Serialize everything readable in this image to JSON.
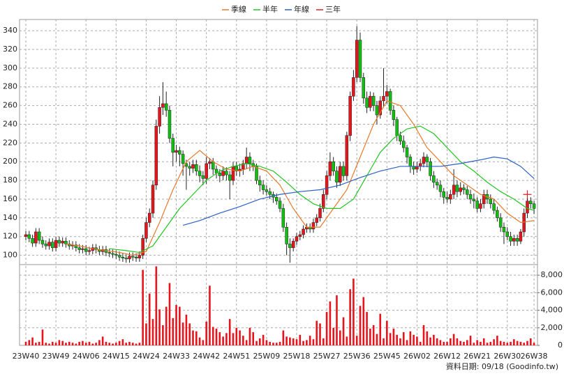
{
  "chart_data": {
    "type": "candlestick",
    "legend": {
      "position": "top"
    },
    "categories": [
      "23W40",
      null,
      null,
      null,
      null,
      null,
      null,
      null,
      null,
      "23W49",
      null,
      null,
      null,
      null,
      null,
      null,
      null,
      null,
      "24W06",
      null,
      null,
      null,
      null,
      null,
      null,
      null,
      null,
      "24W15",
      null,
      null,
      null,
      null,
      null,
      null,
      null,
      null,
      "24W24",
      null,
      null,
      null,
      null,
      null,
      null,
      null,
      null,
      "24W33",
      null,
      null,
      null,
      null,
      null,
      null,
      null,
      null,
      "24W42",
      null,
      null,
      null,
      null,
      null,
      null,
      null,
      null,
      "24W51",
      null,
      null,
      null,
      null,
      null,
      null,
      null,
      null,
      "25W09",
      null,
      null,
      null,
      null,
      null,
      null,
      null,
      null,
      "25W18",
      null,
      null,
      null,
      null,
      null,
      null,
      null,
      null,
      "25W27",
      null,
      null,
      null,
      null,
      null,
      null,
      null,
      null,
      "25W36",
      null,
      null,
      null,
      null,
      null,
      null,
      null,
      null,
      "25W45",
      null,
      null,
      null,
      null,
      null,
      null,
      null,
      null,
      "26W02",
      null,
      null,
      null,
      null,
      null,
      null,
      null,
      null,
      "26W12",
      null,
      null,
      null,
      null,
      null,
      null,
      null,
      null,
      "26W21",
      null,
      null,
      null,
      null,
      null,
      null,
      null,
      null,
      "26W30",
      null,
      null,
      null,
      null,
      null,
      null,
      null,
      "26W38"
    ],
    "open": [
      120,
      122,
      118,
      113,
      125,
      116,
      112,
      110,
      114,
      108,
      116,
      113,
      115,
      112,
      110,
      111,
      108,
      106,
      107,
      104,
      105,
      108,
      106,
      104,
      106,
      103,
      102,
      101,
      100,
      98,
      97,
      96,
      99,
      98,
      97,
      100,
      118,
      135,
      145,
      175,
      238,
      258,
      262,
      255,
      225,
      210,
      212,
      208,
      198,
      195,
      193,
      197,
      190,
      185,
      182,
      198,
      200,
      192,
      188,
      185,
      190,
      186,
      180,
      195,
      190,
      192,
      198,
      205,
      198,
      195,
      180,
      175,
      170,
      168,
      165,
      162,
      158,
      150,
      130,
      112,
      108,
      115,
      120,
      122,
      128,
      130,
      128,
      135,
      140,
      150,
      165,
      185,
      200,
      190,
      178,
      195,
      185,
      228,
      270,
      290,
      330,
      290,
      268,
      258,
      270,
      260,
      250,
      265,
      270,
      275,
      255,
      245,
      228,
      222,
      215,
      205,
      195,
      192,
      195,
      198,
      205,
      200,
      185,
      178,
      175,
      168,
      162,
      160,
      165,
      175,
      168,
      172,
      170,
      165,
      160,
      158,
      150,
      155,
      165,
      160,
      155,
      148,
      140,
      130,
      125,
      120,
      115,
      118,
      115,
      125,
      145,
      158,
      155
    ],
    "high": [
      126,
      126,
      122,
      129,
      129,
      120,
      116,
      118,
      118,
      120,
      120,
      119,
      119,
      116,
      115,
      115,
      112,
      111,
      111,
      109,
      112,
      112,
      110,
      110,
      110,
      107,
      106,
      105,
      104,
      102,
      101,
      103,
      103,
      102,
      104,
      122,
      140,
      150,
      180,
      245,
      270,
      285,
      275,
      260,
      230,
      218,
      216,
      212,
      202,
      200,
      202,
      202,
      196,
      190,
      205,
      204,
      204,
      196,
      192,
      195,
      194,
      190,
      200,
      200,
      198,
      202,
      215,
      210,
      202,
      198,
      185,
      180,
      175,
      172,
      168,
      166,
      162,
      155,
      135,
      118,
      118,
      124,
      126,
      132,
      134,
      134,
      139,
      144,
      155,
      170,
      190,
      210,
      205,
      195,
      200,
      200,
      232,
      275,
      298,
      345,
      338,
      295,
      275,
      275,
      274,
      265,
      270,
      300,
      282,
      278,
      260,
      248,
      232,
      228,
      218,
      208,
      200,
      200,
      203,
      210,
      208,
      204,
      190,
      182,
      180,
      172,
      168,
      170,
      192,
      180,
      178,
      176,
      174,
      170,
      166,
      162,
      160,
      170,
      170,
      165,
      160,
      152,
      145,
      135,
      130,
      125,
      122,
      122,
      128,
      150,
      162,
      162,
      158
    ],
    "low": [
      116,
      114,
      109,
      109,
      112,
      108,
      106,
      106,
      104,
      104,
      109,
      109,
      108,
      106,
      106,
      104,
      102,
      102,
      100,
      100,
      101,
      102,
      100,
      100,
      99,
      98,
      97,
      96,
      94,
      93,
      92,
      92,
      94,
      93,
      93,
      96,
      114,
      130,
      140,
      170,
      230,
      250,
      248,
      220,
      195,
      200,
      195,
      185,
      170,
      185,
      188,
      185,
      178,
      175,
      176,
      192,
      186,
      182,
      178,
      180,
      180,
      160,
      175,
      185,
      184,
      186,
      192,
      190,
      190,
      176,
      168,
      165,
      164,
      160,
      156,
      154,
      146,
      125,
      100,
      92,
      104,
      111,
      116,
      118,
      124,
      124,
      124,
      131,
      136,
      146,
      160,
      180,
      185,
      172,
      174,
      180,
      180,
      222,
      265,
      285,
      285,
      262,
      252,
      254,
      254,
      240,
      246,
      258,
      262,
      250,
      238,
      222,
      218,
      210,
      198,
      188,
      186,
      188,
      190,
      194,
      194,
      180,
      172,
      170,
      162,
      155,
      156,
      155,
      160,
      162,
      164,
      165,
      160,
      155,
      150,
      146,
      146,
      150,
      155,
      150,
      144,
      136,
      125,
      112,
      116,
      110,
      110,
      110,
      112,
      120,
      140,
      150,
      144
    ],
    "close": [
      122,
      118,
      113,
      125,
      116,
      112,
      110,
      114,
      108,
      116,
      113,
      115,
      112,
      110,
      111,
      108,
      106,
      107,
      104,
      105,
      108,
      106,
      104,
      106,
      103,
      102,
      101,
      100,
      98,
      97,
      96,
      99,
      98,
      97,
      100,
      118,
      135,
      145,
      175,
      238,
      258,
      262,
      255,
      225,
      210,
      212,
      208,
      198,
      195,
      193,
      197,
      190,
      185,
      182,
      198,
      200,
      192,
      188,
      185,
      190,
      186,
      180,
      195,
      190,
      192,
      198,
      205,
      198,
      195,
      180,
      175,
      170,
      168,
      165,
      162,
      158,
      150,
      130,
      112,
      108,
      115,
      120,
      122,
      128,
      130,
      128,
      135,
      140,
      150,
      165,
      185,
      200,
      190,
      178,
      195,
      185,
      228,
      270,
      290,
      330,
      290,
      268,
      258,
      270,
      260,
      250,
      265,
      270,
      275,
      255,
      245,
      228,
      222,
      215,
      205,
      195,
      192,
      195,
      198,
      205,
      200,
      185,
      178,
      175,
      168,
      162,
      160,
      165,
      175,
      168,
      172,
      170,
      165,
      160,
      158,
      150,
      155,
      165,
      160,
      155,
      148,
      140,
      130,
      125,
      120,
      115,
      118,
      115,
      125,
      145,
      158,
      155,
      150
    ],
    "volume": [
      400,
      600,
      900,
      300,
      400,
      1800,
      300,
      200,
      400,
      300,
      600,
      500,
      300,
      400,
      300,
      200,
      400,
      500,
      300,
      400,
      200,
      300,
      600,
      1000,
      400,
      300,
      200,
      300,
      500,
      700,
      300,
      400,
      300,
      200,
      300,
      8600,
      2500,
      5900,
      3000,
      9000,
      4100,
      2300,
      4400,
      7100,
      3100,
      4600,
      4400,
      2600,
      3500,
      2500,
      1700,
      1600,
      900,
      600,
      2700,
      6800,
      2100,
      1900,
      1500,
      1000,
      1400,
      3000,
      1400,
      2000,
      1700,
      1100,
      600,
      2000,
      1500,
      500,
      800,
      1200,
      600,
      400,
      300,
      300,
      400,
      1700,
      1000,
      900,
      800,
      700,
      1200,
      500,
      600,
      1100,
      700,
      2800,
      2500,
      800,
      3800,
      5000,
      2000,
      5700,
      1700,
      3200,
      1000,
      6400,
      7600,
      1100,
      4500,
      5500,
      3800,
      1900,
      2300,
      1300,
      3600,
      800,
      2800,
      1400,
      1900,
      1200,
      800,
      1500,
      600,
      1600,
      1200,
      1000,
      400,
      2300,
      1600,
      900,
      1200,
      800,
      600,
      400,
      400,
      800,
      1300,
      800,
      500,
      400,
      600,
      1100,
      300,
      600,
      400,
      800,
      300,
      400,
      700,
      1100,
      500,
      400,
      300,
      400,
      700,
      500,
      400,
      300,
      500,
      800,
      300
    ],
    "series": [
      {
        "name": "季線",
        "color": "#e8782a",
        "x": [
          12,
          16,
          20,
          24,
          28,
          32,
          36,
          40,
          44,
          48,
          52,
          56,
          60,
          64,
          68,
          72,
          76,
          80,
          84,
          88,
          92,
          96,
          100,
          104,
          108,
          112,
          116,
          120,
          124,
          128,
          132,
          136,
          140,
          144,
          148,
          152
        ],
        "values": [
          112,
          110,
          107,
          105,
          103,
          100,
          104,
          135,
          170,
          200,
          212,
          200,
          192,
          190,
          195,
          190,
          175,
          150,
          130,
          130,
          150,
          170,
          205,
          240,
          265,
          260,
          240,
          215,
          200,
          185,
          175,
          165,
          160,
          145,
          135,
          137
        ]
      },
      {
        "name": "半年",
        "color": "#22c422",
        "x": [
          25,
          30,
          34,
          38,
          42,
          46,
          50,
          54,
          58,
          62,
          66,
          70,
          74,
          78,
          82,
          86,
          90,
          94,
          98,
          102,
          106,
          110,
          114,
          118,
          122,
          126,
          130,
          134,
          138,
          142,
          146,
          150,
          152
        ],
        "values": [
          107,
          105,
          103,
          110,
          130,
          150,
          165,
          180,
          190,
          195,
          198,
          195,
          190,
          178,
          165,
          155,
          150,
          150,
          160,
          185,
          210,
          225,
          235,
          238,
          230,
          215,
          200,
          190,
          178,
          168,
          160,
          150,
          148
        ]
      },
      {
        "name": "年線",
        "color": "#2a5fc4",
        "x": [
          47,
          52,
          58,
          64,
          70,
          76,
          82,
          88,
          94,
          100,
          106,
          112,
          118,
          124,
          130,
          136,
          140,
          144,
          148,
          152
        ],
        "values": [
          132,
          137,
          145,
          152,
          160,
          165,
          168,
          170,
          175,
          183,
          190,
          195,
          195,
          195,
          198,
          202,
          205,
          203,
          195,
          182
        ]
      },
      {
        "name": "三年",
        "color": "#e0202a",
        "x": [
          150
        ],
        "values": [
          165
        ]
      }
    ],
    "ylim": [
      90,
      352
    ],
    "yticks": [
      100,
      120,
      140,
      160,
      180,
      200,
      220,
      240,
      260,
      280,
      300,
      320,
      340
    ],
    "y2lim": [
      0,
      9200
    ],
    "y2ticks": [
      0,
      {
        "value": 2000,
        "label": "2,000"
      },
      {
        "value": 4000,
        "label": "4,000"
      },
      {
        "value": 6000,
        "label": "6,000"
      },
      {
        "value": 8000,
        "label": "8,000"
      }
    ],
    "grid": true,
    "up_color": "#e8141c",
    "down_color": "#10c010",
    "volume_color": "#e8141c",
    "footer": "資料日期: 09/18 (Goodinfo.tw)"
  }
}
